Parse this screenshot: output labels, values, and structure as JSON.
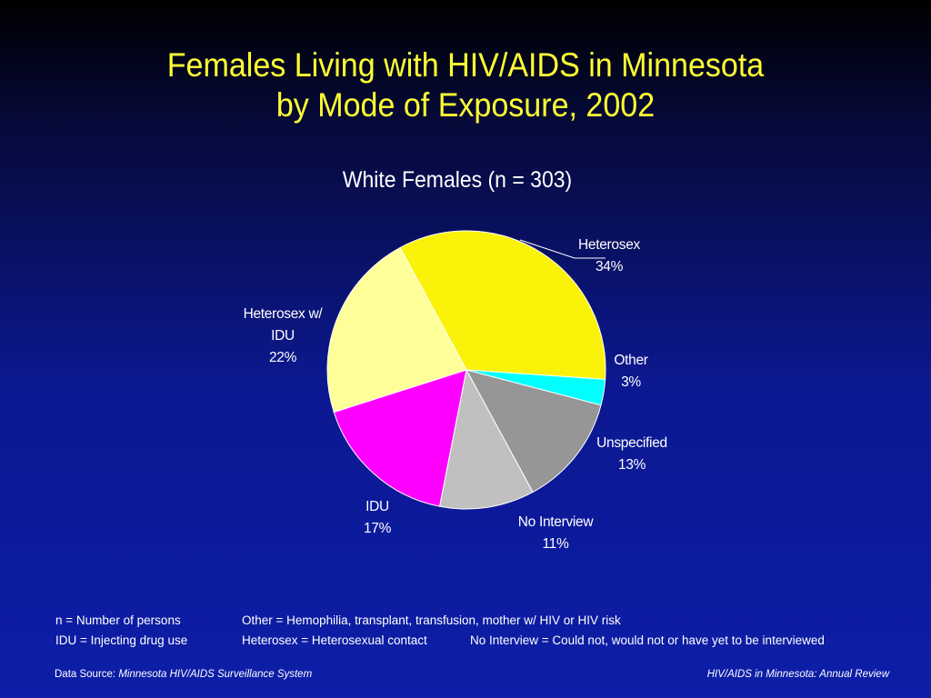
{
  "slide": {
    "title_line1": "Females Living with HIV/AIDS in Minnesota",
    "title_line2": "by Mode of Exposure, 2002"
  },
  "chart_data": {
    "type": "pie",
    "title": "White Females (n = 303)",
    "slices": [
      {
        "label_lines": [
          "Heterosex"
        ],
        "percent_label": "34%",
        "value": 34,
        "color": "#fbf20a"
      },
      {
        "label_lines": [
          "Other"
        ],
        "percent_label": "3%",
        "value": 3,
        "color": "#00ffff"
      },
      {
        "label_lines": [
          "Unspecified"
        ],
        "percent_label": "13%",
        "value": 13,
        "color": "#969696"
      },
      {
        "label_lines": [
          "No Interview"
        ],
        "percent_label": "11%",
        "value": 11,
        "color": "#c0c0c0"
      },
      {
        "label_lines": [
          "IDU"
        ],
        "percent_label": "17%",
        "value": 17,
        "color": "#ff00ff"
      },
      {
        "label_lines": [
          "Heterosex w/",
          "IDU"
        ],
        "percent_label": "22%",
        "value": 22,
        "color": "#ffff99"
      }
    ]
  },
  "footnotes": {
    "n_def": "n = Number of persons",
    "other_def": "Other = Hemophilia, transplant, transfusion, mother w/ HIV or HIV risk",
    "idu_def": "IDU = Injecting drug use",
    "heterosex_def": "Heterosex = Heterosexual contact",
    "no_interview_def": "No Interview = Could not, would not or have yet to be interviewed"
  },
  "footer": {
    "source_prefix": "Data Source:",
    "source_name": "Minnesota HIV/AIDS Surveillance System",
    "right_text": "HIV/AIDS in Minnesota: Annual Review"
  }
}
